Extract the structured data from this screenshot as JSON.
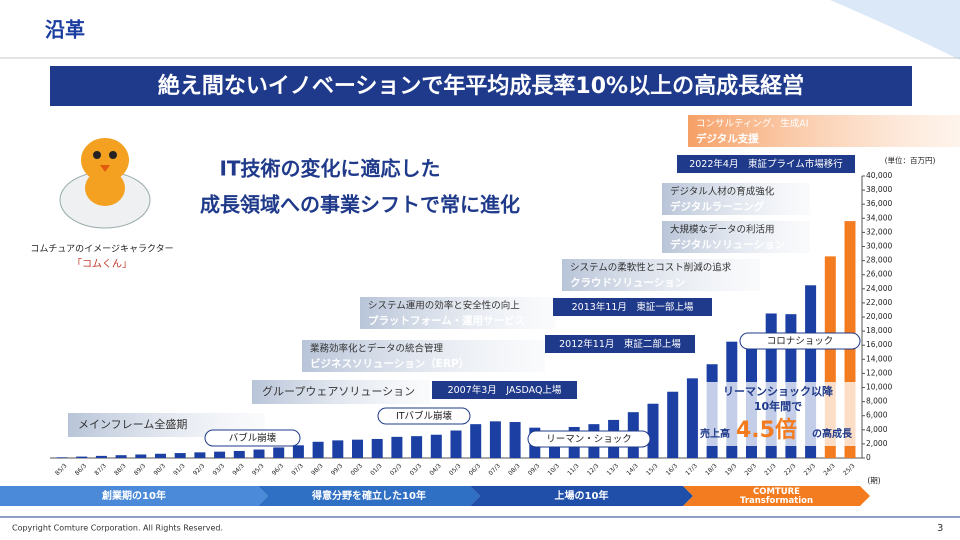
{
  "header": {
    "title": "沿革"
  },
  "banner": "絶え間ないイノベーションで年平均成長率10%以上の高成長経営",
  "headline": [
    "IT技術の変化に適応した",
    "成長領域への事業シフトで常に進化"
  ],
  "mascot": {
    "caption": "コムチュアのイメージキャラクター",
    "name": "「コムくん」"
  },
  "eras": [
    {
      "main": "メインフレーム全盛期"
    },
    {
      "main": "グループウェアソリューション"
    },
    {
      "sub": "業務効率化とデータの統合管理",
      "main": "ビジネスソリューション（ERP）"
    },
    {
      "sub": "システム運用の効率と安全性の向上",
      "main": "プラットフォーム・運用サービス"
    },
    {
      "sub": "システムの柔軟性とコスト削減の追求",
      "main": "クラウドソリューション"
    },
    {
      "sub": "大規模なデータの利活用",
      "main": "デジタルソリューション"
    },
    {
      "sub": "デジタル人材の育成強化",
      "main": "デジタルラーニング"
    },
    {
      "sub": "コンサルティング、生成AI",
      "main": "デジタル支援"
    }
  ],
  "milestones": [
    "2007年3月　JASDAQ上場",
    "2012年11月　東証二部上場",
    "2013年11月　東証一部上場",
    "2022年4月　東証プライム市場移行"
  ],
  "events": [
    "バブル崩壊",
    "ITバブル崩壊",
    "リーマン・ショック",
    "コロナショック"
  ],
  "callout": {
    "line1": "リーマンショック以降",
    "line2": "10年間で",
    "prefix": "売上高",
    "value": "4.5倍",
    "suffix": "の高成長"
  },
  "phases": [
    {
      "lines": [
        "創業期の10年"
      ]
    },
    {
      "lines": [
        "得意分野を確立した10年"
      ]
    },
    {
      "lines": [
        "上場の10年"
      ]
    },
    {
      "lines": [
        "COMTURE",
        "Transformation"
      ]
    }
  ],
  "footer": {
    "copyright": "Copyright Comture Corporation. All Rights Reserved.",
    "page": "3"
  },
  "chart_data": {
    "type": "bar",
    "unit": "(単位：百万円)",
    "x_unit": "(期)",
    "categories": [
      "85/3",
      "86/3",
      "87/3",
      "88/3",
      "89/3",
      "90/3",
      "91/3",
      "92/3",
      "93/3",
      "94/3",
      "95/3",
      "96/3",
      "97/3",
      "98/3",
      "99/3",
      "00/3",
      "01/3",
      "02/3",
      "03/3",
      "04/3",
      "05/3",
      "06/3",
      "07/3",
      "08/3",
      "09/3",
      "10/3",
      "11/3",
      "12/3",
      "13/3",
      "14/3",
      "15/3",
      "16/3",
      "17/3",
      "18/3",
      "19/3",
      "20/3",
      "21/3",
      "22/3",
      "23/3",
      "24/3",
      "25/3"
    ],
    "values": [
      100,
      200,
      300,
      400,
      500,
      600,
      700,
      800,
      900,
      1000,
      1200,
      1500,
      1800,
      2300,
      2500,
      2600,
      2700,
      3000,
      3100,
      3300,
      3900,
      4800,
      5200,
      5100,
      4300,
      3700,
      4400,
      4800,
      5400,
      6500,
      7700,
      9400,
      11300,
      13300,
      16500,
      17700,
      20500,
      20400,
      24500,
      28600,
      33600
    ],
    "colors": [
      "#1b3fa3",
      "#1b3fa3",
      "#1b3fa3",
      "#1b3fa3",
      "#1b3fa3",
      "#1b3fa3",
      "#1b3fa3",
      "#1b3fa3",
      "#1b3fa3",
      "#1b3fa3",
      "#1b3fa3",
      "#1b3fa3",
      "#1b3fa3",
      "#1b3fa3",
      "#1b3fa3",
      "#1b3fa3",
      "#1b3fa3",
      "#1b3fa3",
      "#1b3fa3",
      "#1b3fa3",
      "#1b3fa3",
      "#1b3fa3",
      "#1b3fa3",
      "#1b3fa3",
      "#1b3fa3",
      "#1b3fa3",
      "#1b3fa3",
      "#1b3fa3",
      "#1b3fa3",
      "#1b3fa3",
      "#1b3fa3",
      "#1b3fa3",
      "#1b3fa3",
      "#1b3fa3",
      "#1b3fa3",
      "#1b3fa3",
      "#1b3fa3",
      "#1b3fa3",
      "#1b3fa3",
      "#f47c20",
      "#f47c20"
    ],
    "ylim": [
      0,
      40000
    ],
    "yticks": [
      0,
      {
        "value": 2000,
        "label": "2,000"
      },
      {
        "value": 4000,
        "label": "4,000"
      },
      {
        "value": 6000,
        "label": "6,000"
      },
      {
        "value": 8000,
        "label": "8,000"
      },
      {
        "value": 10000,
        "label": "10,000"
      },
      {
        "value": 12000,
        "label": "12,000"
      },
      {
        "value": 14000,
        "label": "14,000"
      },
      {
        "value": 16000,
        "label": "16,000"
      },
      {
        "value": 18000,
        "label": "18,000"
      },
      {
        "value": 20000,
        "label": "20,000"
      },
      {
        "value": 22000,
        "label": "22,000"
      },
      {
        "value": 24000,
        "label": "24,000"
      },
      {
        "value": 26000,
        "label": "26,000"
      },
      {
        "value": 28000,
        "label": "28,000"
      },
      {
        "value": 30000,
        "label": "30,000"
      },
      {
        "value": 32000,
        "label": "32,000"
      },
      {
        "value": 34000,
        "label": "34,000"
      },
      {
        "value": 36000,
        "label": "36,000"
      },
      {
        "value": 38000,
        "label": "38,000"
      },
      {
        "value": 40000,
        "label": "40,000"
      }
    ]
  }
}
